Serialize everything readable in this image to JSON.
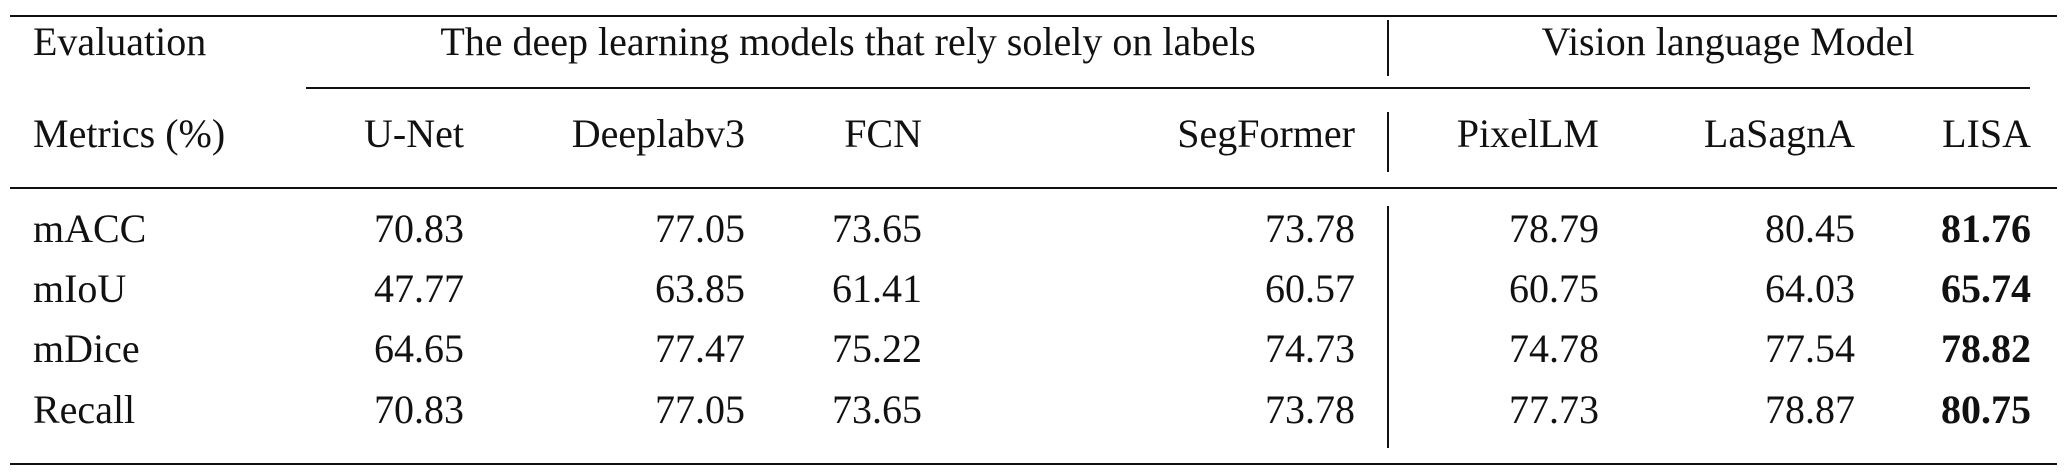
{
  "table": {
    "group_headers": [
      "Evaluation",
      "The deep learning models that rely solely on labels",
      "Vision language Model"
    ],
    "columns": [
      "Metrics (%)",
      "U-Net",
      "Deeplabv3",
      "FCN",
      "SegFormer",
      "PixelLM",
      "LaSagnA",
      "LISA"
    ],
    "rows": [
      [
        "mACC",
        70.83,
        77.05,
        73.65,
        73.78,
        78.79,
        80.45,
        81.76
      ],
      [
        "mIoU",
        47.77,
        63.85,
        61.41,
        60.57,
        60.75,
        64.03,
        65.74
      ],
      [
        "mDice",
        64.65,
        77.47,
        75.22,
        74.73,
        74.78,
        77.54,
        78.82
      ],
      [
        "Recall",
        70.83,
        77.05,
        73.65,
        73.78,
        77.73,
        78.87,
        80.75
      ]
    ]
  }
}
